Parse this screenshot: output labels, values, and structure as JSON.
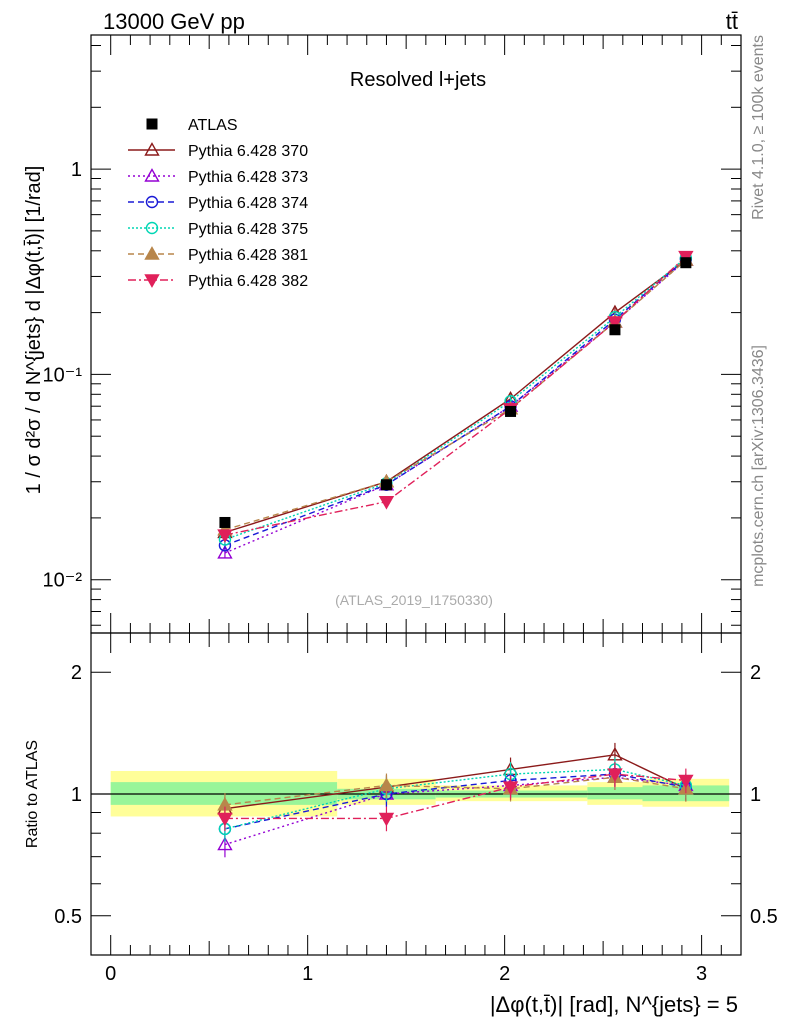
{
  "header": {
    "left": "13000 GeV pp",
    "right": "tt̄"
  },
  "side_labels": {
    "rivet": "Rivet 4.1.0, ≥ 100k events",
    "mcplots": "mcplots.cern.ch [arXiv:1306.3436]"
  },
  "colors": {
    "ATLAS": "#000000",
    "p370": "#8b1a1a",
    "p373": "#9400d3",
    "p374": "#1a1ad6",
    "p375": "#00d6b4",
    "p381": "#b8864b",
    "p382": "#e0205a",
    "band_inner": "#99f599",
    "band_outer": "#fffe99"
  },
  "chart_data": [
    {
      "type": "line",
      "panel": "main",
      "title": "Resolved l+jets",
      "watermark": "(ATLAS_2019_I1750330)",
      "ylabel": "1 / σ d²σ / d N^{jets} d |Δφ(t,t̄)| [1/rad]",
      "yscale": "log",
      "ylim": [
        0.0055,
        4.5
      ],
      "xlim": [
        -0.1,
        3.2
      ],
      "ytick_labels": [
        "10⁻²",
        "10⁻¹",
        "1"
      ],
      "x": [
        0.58,
        1.4,
        2.03,
        2.56,
        2.92
      ],
      "series": [
        {
          "name": "ATLAS",
          "key": "ATLAS",
          "values": [
            0.019,
            0.029,
            0.066,
            0.165,
            0.35
          ]
        },
        {
          "name": "Pythia 6.428 370",
          "key": "p370",
          "values": [
            0.017,
            0.03,
            0.076,
            0.2,
            0.36
          ]
        },
        {
          "name": "Pythia 6.428 373",
          "key": "p373",
          "values": [
            0.0135,
            0.029,
            0.07,
            0.18,
            0.36
          ]
        },
        {
          "name": "Pythia 6.428 374",
          "key": "p374",
          "values": [
            0.0147,
            0.029,
            0.07,
            0.185,
            0.365
          ]
        },
        {
          "name": "Pythia 6.428 375",
          "key": "p375",
          "values": [
            0.0157,
            0.0295,
            0.074,
            0.19,
            0.37
          ]
        },
        {
          "name": "Pythia 6.428 381",
          "key": "p381",
          "values": [
            0.0175,
            0.03,
            0.068,
            0.18,
            0.36
          ]
        },
        {
          "name": "Pythia 6.428 382",
          "key": "p382",
          "values": [
            0.0165,
            0.024,
            0.068,
            0.18,
            0.375
          ]
        }
      ]
    },
    {
      "type": "line",
      "panel": "ratio",
      "ylabel": "Ratio to ATLAS",
      "xlabel": "|Δφ(t,t̄)| [rad], N^{jets} = 5",
      "yscale": "log",
      "ylim": [
        0.4,
        2.5
      ],
      "xlim": [
        -0.1,
        3.2
      ],
      "ytick_labels": [
        "0.5",
        "1",
        "2"
      ],
      "xtick_labels": [
        "0",
        "1",
        "2",
        "3"
      ],
      "x": [
        0.58,
        1.4,
        2.03,
        2.56,
        2.92
      ],
      "bins": [
        [
          0,
          1.15
        ],
        [
          1.15,
          1.65
        ],
        [
          1.65,
          2.42
        ],
        [
          2.42,
          2.7
        ],
        [
          2.7,
          3.14
        ]
      ],
      "band_inner": [
        [
          0.94,
          1.07
        ],
        [
          0.97,
          1.03
        ],
        [
          0.98,
          1.02
        ],
        [
          0.97,
          1.04
        ],
        [
          0.96,
          1.05
        ]
      ],
      "band_outer": [
        [
          0.88,
          1.14
        ],
        [
          0.94,
          1.09
        ],
        [
          0.96,
          1.05
        ],
        [
          0.94,
          1.07
        ],
        [
          0.93,
          1.09
        ]
      ],
      "series": [
        {
          "name": "Pythia 6.428 370",
          "key": "p370",
          "values": [
            0.92,
            1.04,
            1.15,
            1.25,
            1.03
          ]
        },
        {
          "name": "Pythia 6.428 373",
          "key": "p373",
          "values": [
            0.75,
            1.0,
            1.05,
            1.1,
            1.05
          ]
        },
        {
          "name": "Pythia 6.428 374",
          "key": "p374",
          "values": [
            0.82,
            1.0,
            1.08,
            1.12,
            1.04
          ]
        },
        {
          "name": "Pythia 6.428 375",
          "key": "p375",
          "values": [
            0.82,
            1.03,
            1.12,
            1.15,
            1.05
          ]
        },
        {
          "name": "Pythia 6.428 381",
          "key": "p381",
          "values": [
            0.94,
            1.05,
            1.03,
            1.1,
            1.03
          ]
        },
        {
          "name": "Pythia 6.428 382",
          "key": "p382",
          "values": [
            0.87,
            0.87,
            1.04,
            1.12,
            1.08
          ]
        }
      ]
    }
  ]
}
